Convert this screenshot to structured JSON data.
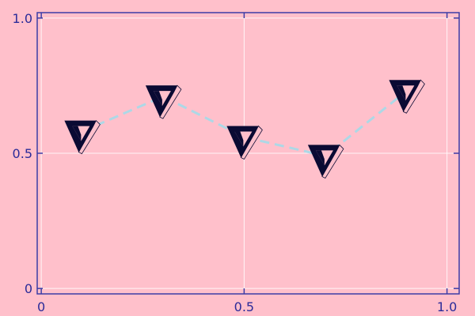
{
  "chart_data": {
    "type": "scatter",
    "title": "",
    "xlabel": "",
    "ylabel": "",
    "xlim": [
      -0.01,
      1.03
    ],
    "ylim": [
      -0.02,
      1.02
    ],
    "grid": true,
    "x_ticks": [
      {
        "value": 0,
        "label": "0"
      },
      {
        "value": 0.5,
        "label": "0.5"
      },
      {
        "value": 1,
        "label": "1.0"
      }
    ],
    "y_ticks": [
      {
        "value": 0,
        "label": "0"
      },
      {
        "value": 0.5,
        "label": "0.5"
      },
      {
        "value": 1,
        "label": "1.0"
      }
    ],
    "series": [
      {
        "x": [
          0.1,
          0.3,
          0.5,
          0.7,
          0.9
        ],
        "y": [
          0.58,
          0.71,
          0.56,
          0.49,
          0.73
        ],
        "line_style": "dashed",
        "line_color": "#add8e6",
        "marker": "penrose-triangle"
      }
    ],
    "colors": {
      "background": "#ffc0cb",
      "frame": "#3c3ca6",
      "grid": "#ffffff",
      "marker_fill": "#0a0a33"
    }
  }
}
